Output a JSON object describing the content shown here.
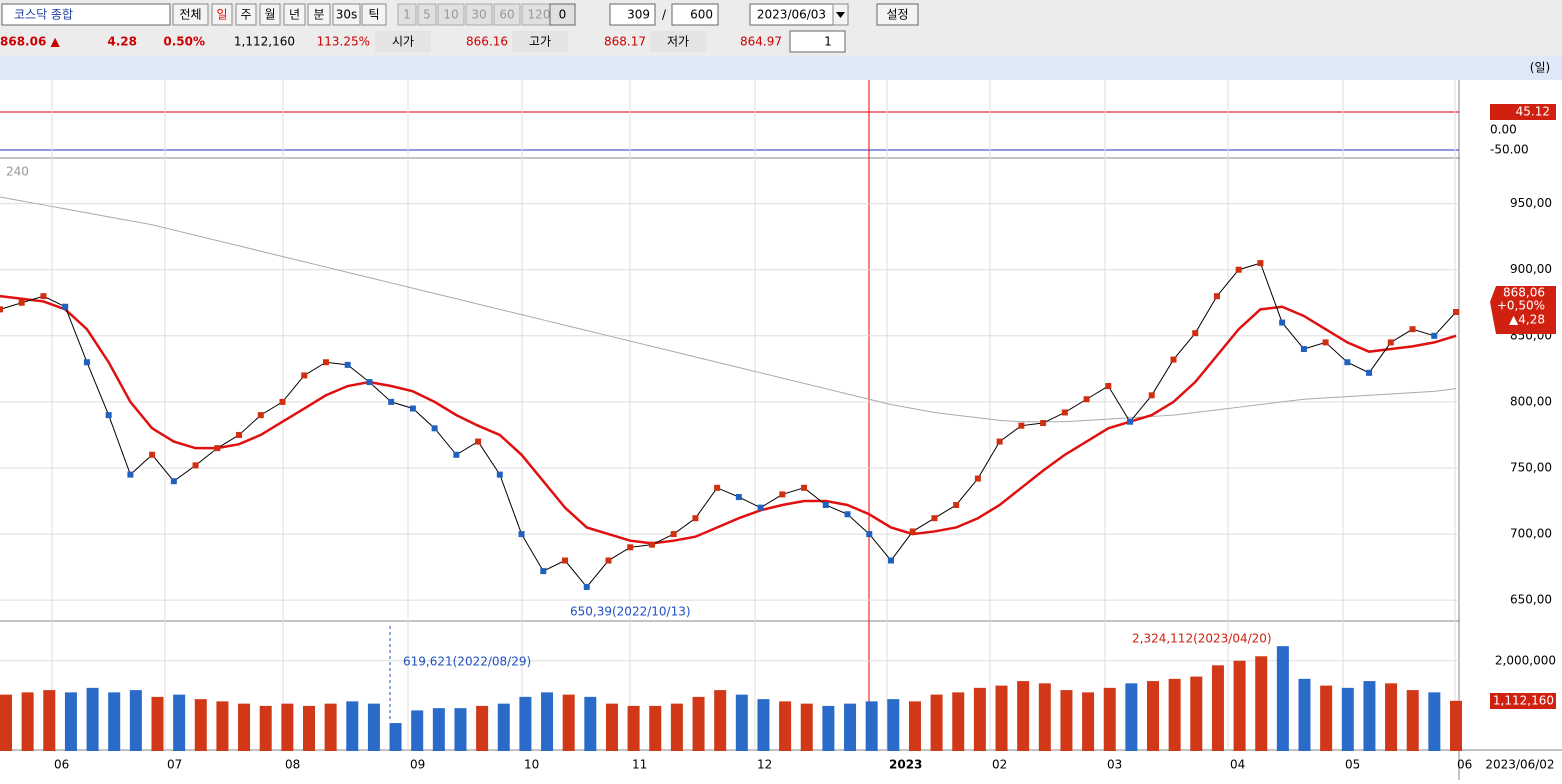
{
  "toolbar": {
    "symbol": "코스닥 종합",
    "periods": [
      "전체",
      "일",
      "주",
      "월",
      "년",
      "분",
      "30s",
      "틱"
    ],
    "minutes": [
      "1",
      "5",
      "10",
      "30",
      "60",
      "120"
    ],
    "step": "0",
    "shown": "309",
    "total": "600",
    "date": "2023/06/03",
    "settings": "설정"
  },
  "quote": {
    "price": "868.06 ▲",
    "change": "4.28",
    "pct": "0.50%",
    "volume": "1,112,160",
    "ratio": "113.25%",
    "open_label": "시가",
    "open": "866.16",
    "high_label": "고가",
    "high": "868.17",
    "low_label": "저가",
    "low": "864.97",
    "count": "1"
  },
  "unit": "(일)",
  "indicator": {
    "current": "45.12",
    "ticks": [
      "0.00",
      "-50.00"
    ]
  },
  "price": {
    "period": "240",
    "ylim": [
      635,
      983
    ],
    "ticks": [
      {
        "value": 650,
        "label": "650,00"
      },
      {
        "value": 700,
        "label": "700,00"
      },
      {
        "value": 750,
        "label": "750,00"
      },
      {
        "value": 800,
        "label": "800,00"
      },
      {
        "value": 850,
        "label": "850,00"
      },
      {
        "value": 900,
        "label": "900,00"
      },
      {
        "value": 950,
        "label": "950,00"
      }
    ],
    "current": {
      "price": "868,06",
      "pct": "+0,50%",
      "change": "▲4,28"
    },
    "low_note": "650,39(2022/10/13)",
    "close": [
      870,
      875,
      880,
      872,
      830,
      790,
      745,
      760,
      740,
      752,
      765,
      775,
      790,
      800,
      820,
      830,
      828,
      815,
      800,
      795,
      780,
      760,
      770,
      745,
      700,
      672,
      680,
      660,
      680,
      690,
      692,
      700,
      712,
      735,
      728,
      720,
      730,
      735,
      722,
      715,
      700,
      680,
      702,
      712,
      722,
      742,
      770,
      782,
      784,
      792,
      802,
      812,
      785,
      805,
      832,
      852,
      880,
      900,
      905,
      860,
      840,
      845,
      830,
      822,
      845,
      855,
      850,
      868
    ],
    "ma20": [
      880,
      878,
      876,
      870,
      855,
      830,
      800,
      780,
      770,
      765,
      765,
      768,
      775,
      785,
      795,
      805,
      812,
      815,
      812,
      808,
      800,
      790,
      782,
      775,
      760,
      740,
      720,
      705,
      700,
      695,
      693,
      695,
      698,
      705,
      712,
      718,
      722,
      725,
      725,
      722,
      715,
      705,
      700,
      702,
      705,
      712,
      722,
      735,
      748,
      760,
      770,
      780,
      785,
      790,
      800,
      815,
      835,
      855,
      870,
      872,
      865,
      855,
      845,
      838,
      840,
      842,
      845,
      850
    ],
    "ma240": [
      955,
      952,
      949,
      946,
      943,
      940,
      937,
      934,
      930,
      926,
      922,
      918,
      914,
      910,
      906,
      902,
      898,
      894,
      890,
      886,
      882,
      878,
      874,
      870,
      866,
      862,
      858,
      854,
      850,
      846,
      842,
      838,
      834,
      830,
      826,
      822,
      818,
      814,
      810,
      806,
      802,
      798,
      795,
      792,
      790,
      788,
      786,
      785,
      785,
      785,
      786,
      787,
      788,
      789,
      790,
      792,
      794,
      796,
      798,
      800,
      802,
      803,
      804,
      805,
      806,
      807,
      808,
      810
    ]
  },
  "volume": {
    "ylim": [
      0,
      2860000
    ],
    "ticks": [
      {
        "value": 2000000,
        "label": "2,000,000"
      }
    ],
    "current": "1,112,160",
    "low_note": "619,621(2022/08/29)",
    "high_note": "2,324,112(2023/04/20)",
    "values": [
      1250000,
      1300000,
      1350000,
      1300000,
      1400000,
      1300000,
      1350000,
      1200000,
      1250000,
      1150000,
      1100000,
      1050000,
      1000000,
      1050000,
      1000000,
      1050000,
      1100000,
      1050000,
      619621,
      900000,
      950000,
      950000,
      1000000,
      1050000,
      1200000,
      1300000,
      1250000,
      1200000,
      1050000,
      1000000,
      1000000,
      1050000,
      1200000,
      1350000,
      1250000,
      1150000,
      1100000,
      1050000,
      1000000,
      1050000,
      1100000,
      1150000,
      1100000,
      1250000,
      1300000,
      1400000,
      1450000,
      1550000,
      1500000,
      1350000,
      1300000,
      1400000,
      1500000,
      1550000,
      1600000,
      1650000,
      1900000,
      2000000,
      2100000,
      2324112,
      1600000,
      1450000,
      1400000,
      1550000,
      1500000,
      1350000,
      1300000,
      1112160
    ]
  },
  "months": [
    "06",
    "07",
    "08",
    "09",
    "10",
    "11",
    "12",
    "2023",
    "02",
    "03",
    "04",
    "05",
    "06"
  ],
  "last_date": "2023/06/02"
}
